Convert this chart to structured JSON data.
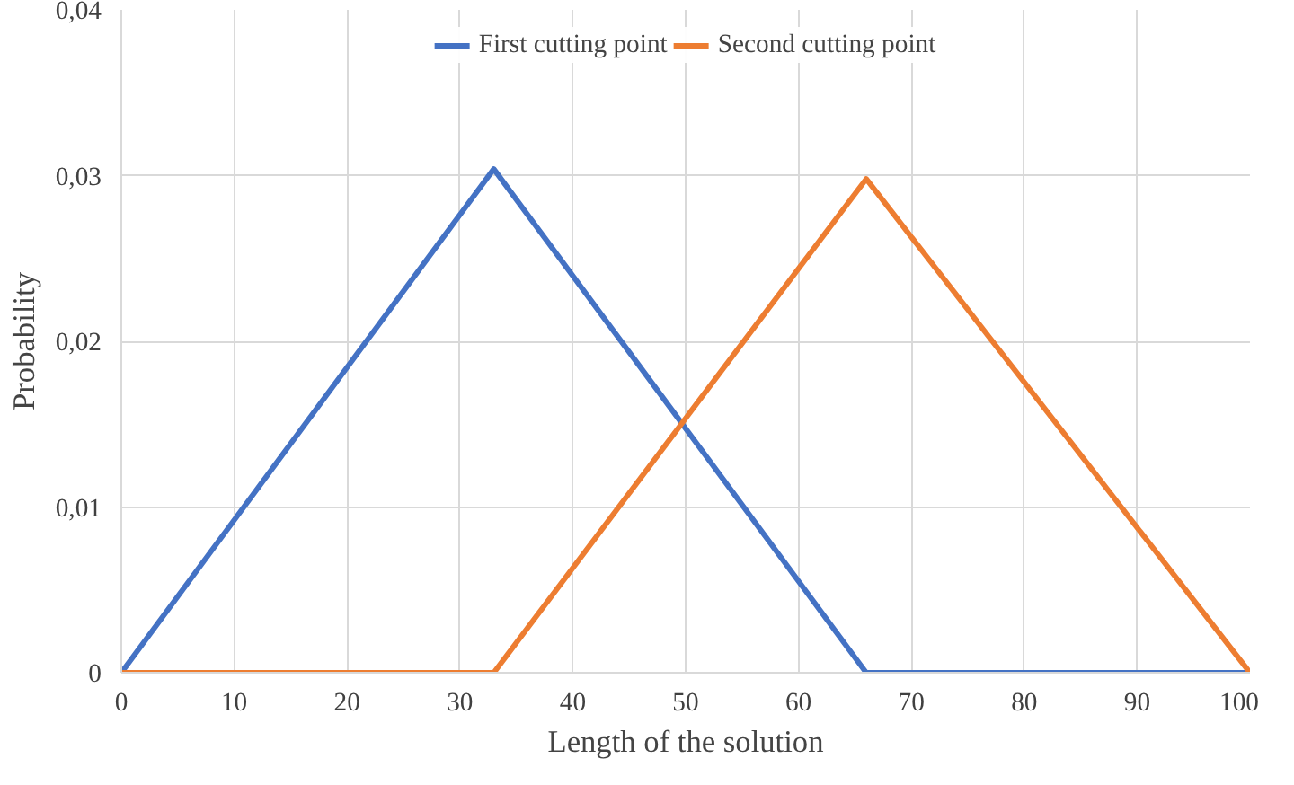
{
  "chart_data": {
    "type": "line",
    "xlabel": "Length of the solution",
    "ylabel": "Probability",
    "x": [
      0,
      33,
      66,
      100
    ],
    "series": [
      {
        "name": "First cutting point",
        "color": "#4472c4",
        "values": [
          0,
          0.0304,
          0,
          0
        ]
      },
      {
        "name": "Second cutting point",
        "color": "#ed7d31",
        "values": [
          0,
          0,
          0.0298,
          0
        ]
      }
    ],
    "xlim": [
      0,
      100
    ],
    "xticks": [
      0,
      10,
      20,
      30,
      40,
      50,
      60,
      70,
      80,
      90,
      100
    ],
    "ylim": [
      0,
      0.04
    ],
    "yticks": [
      0,
      {
        "value": 0.01,
        "label": "0,01"
      },
      {
        "value": 0.02,
        "label": "0,02"
      },
      {
        "value": 0.03,
        "label": "0,03"
      },
      {
        "value": 0.04,
        "label": "0,04"
      }
    ],
    "grid": true,
    "legend": "top",
    "marker": "none",
    "line_style": "solid"
  }
}
